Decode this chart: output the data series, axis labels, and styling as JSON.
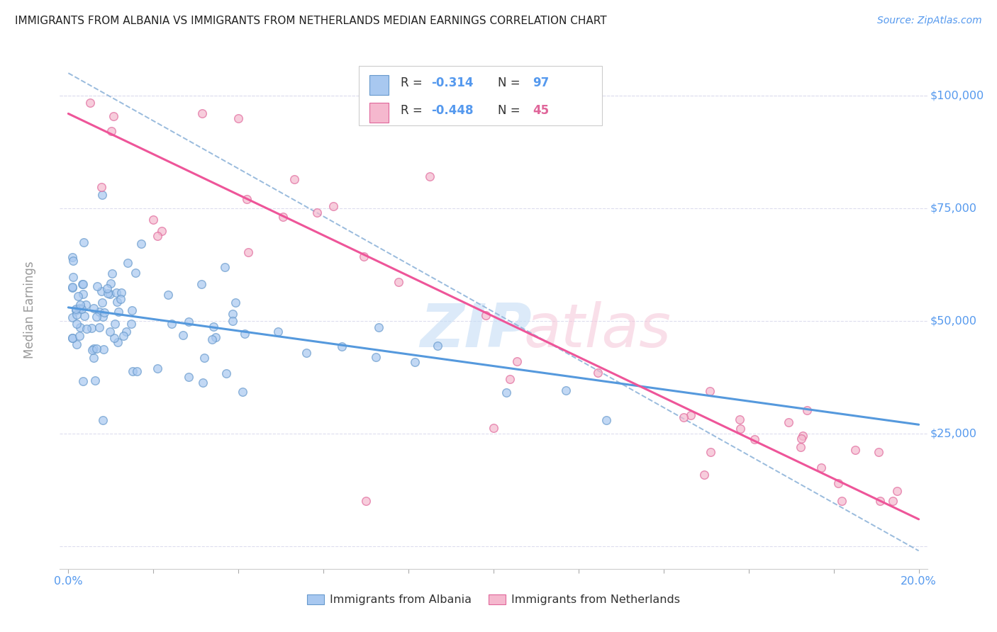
{
  "title": "IMMIGRANTS FROM ALBANIA VS IMMIGRANTS FROM NETHERLANDS MEDIAN EARNINGS CORRELATION CHART",
  "source": "Source: ZipAtlas.com",
  "ylabel": "Median Earnings",
  "xlim": [
    -0.002,
    0.202
  ],
  "ylim": [
    -5000,
    110000
  ],
  "yticks": [
    0,
    25000,
    50000,
    75000,
    100000
  ],
  "ytick_labels": [
    "",
    "$25,000",
    "$50,000",
    "$75,000",
    "$100,000"
  ],
  "albania_color": "#a8c8f0",
  "albania_edge_color": "#6699cc",
  "netherlands_color": "#f5b8ce",
  "netherlands_edge_color": "#e0669a",
  "albania_line_color": "#5599dd",
  "netherlands_line_color": "#ee5599",
  "dashed_line_color": "#99bbdd",
  "background_color": "#ffffff",
  "grid_color": "#ddddee",
  "title_color": "#222222",
  "source_color": "#5599ee",
  "axis_label_color": "#aaaaaa",
  "tick_color": "#5599ee",
  "scatter_alpha": 0.7,
  "scatter_size": 70,
  "scatter_edgewidth": 1.0,
  "albania_slope": -130000,
  "albania_intercept": 53000,
  "netherlands_slope": -450000,
  "netherlands_intercept": 96000,
  "dashed_slope": -530000,
  "dashed_intercept": 105000,
  "legend_box_color": "#ffffff",
  "legend_border_color": "#cccccc",
  "watermark_zip_color": "#c5ddf5",
  "watermark_atlas_color": "#f5c5d8"
}
